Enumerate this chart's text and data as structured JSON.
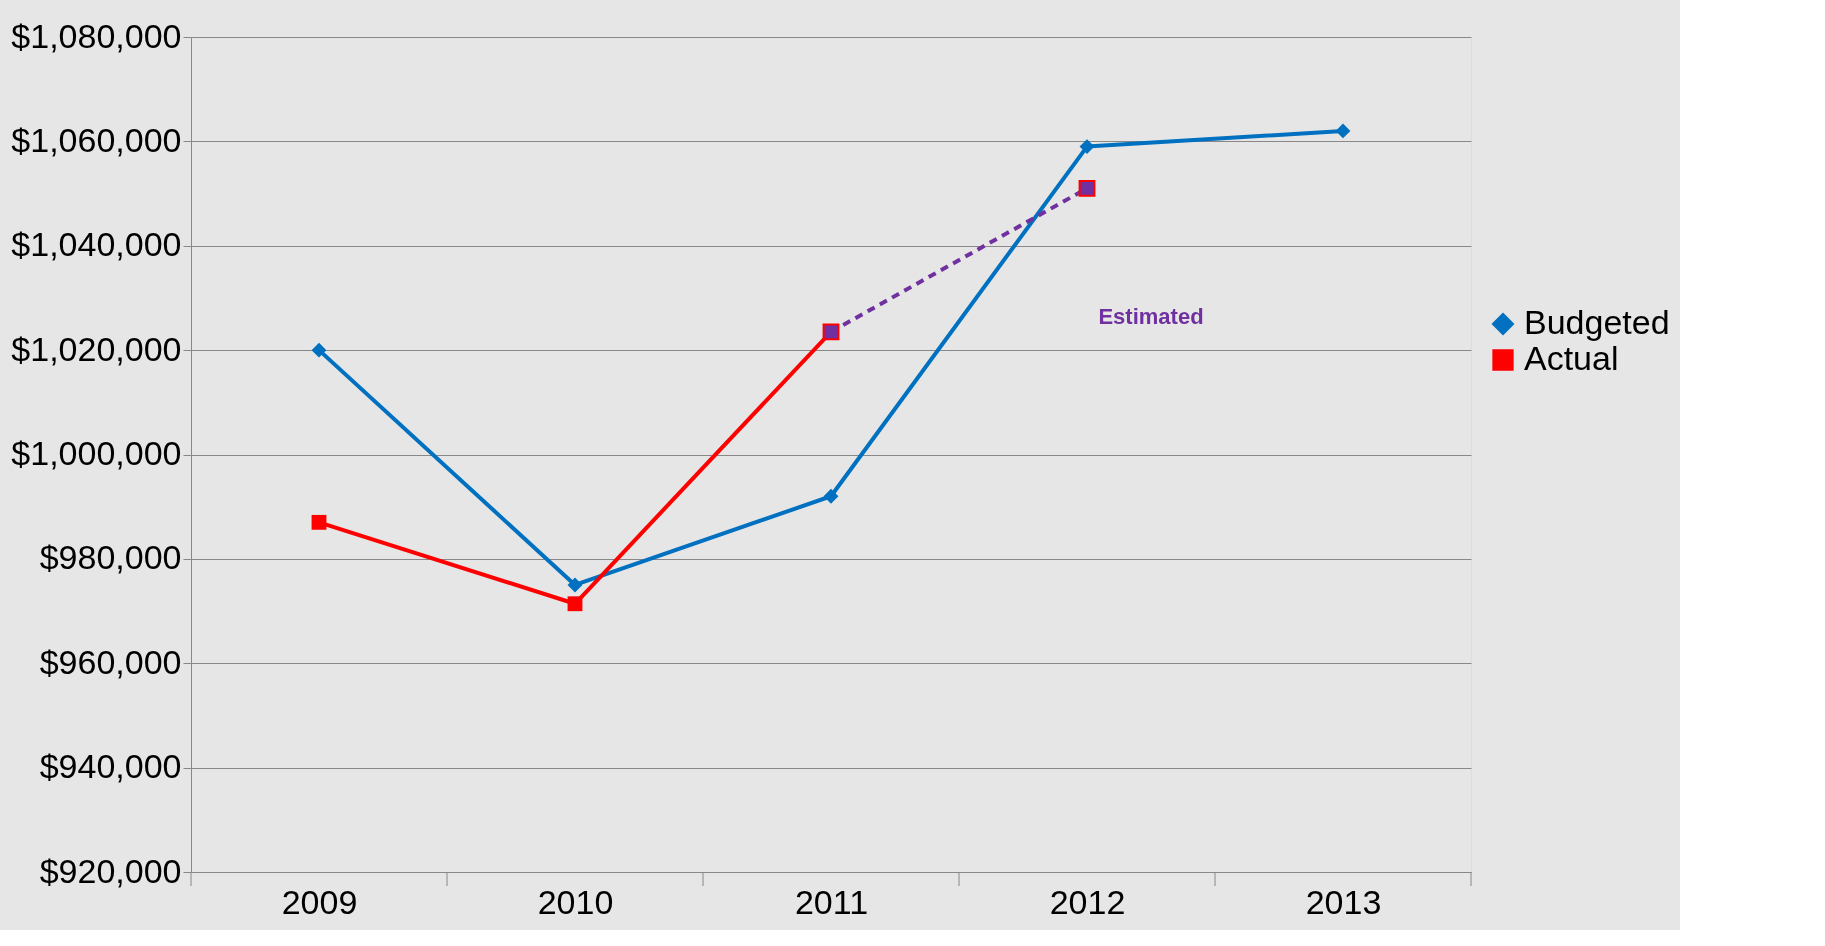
{
  "chart_data": {
    "type": "line",
    "categories": [
      "2009",
      "2010",
      "2011",
      "2012",
      "2013"
    ],
    "series": [
      {
        "name": "Budgeted",
        "color": "#0070c0",
        "marker": "diamond",
        "values": [
          1020000,
          975000,
          992000,
          1059000,
          1062000
        ]
      },
      {
        "name": "Actual",
        "color": "#ff0000",
        "marker": "square",
        "values": [
          987000,
          971400,
          1023500,
          null,
          null
        ]
      },
      {
        "color": "#7030a0",
        "marker": "square",
        "line_style": "dashed",
        "values": [
          null,
          null,
          1023500,
          1051000,
          null
        ]
      }
    ],
    "ylim": [
      920000,
      1080000
    ],
    "yticks": [
      {
        "value": 920000,
        "label": "$920,000"
      },
      {
        "value": 940000,
        "label": "$940,000"
      },
      {
        "value": 960000,
        "label": "$960,000"
      },
      {
        "value": 980000,
        "label": "$980,000"
      },
      {
        "value": 1000000,
        "label": "$1,000,000"
      },
      {
        "value": 1020000,
        "label": "$1,020,000"
      },
      {
        "value": 1040000,
        "label": "$1,040,000"
      },
      {
        "value": 1060000,
        "label": "$1,060,000"
      },
      {
        "value": 1080000,
        "label": "$1,080,000"
      }
    ],
    "grid": "y",
    "legend": "right",
    "line_style": "solid",
    "annotations": [
      "Estimated"
    ]
  }
}
